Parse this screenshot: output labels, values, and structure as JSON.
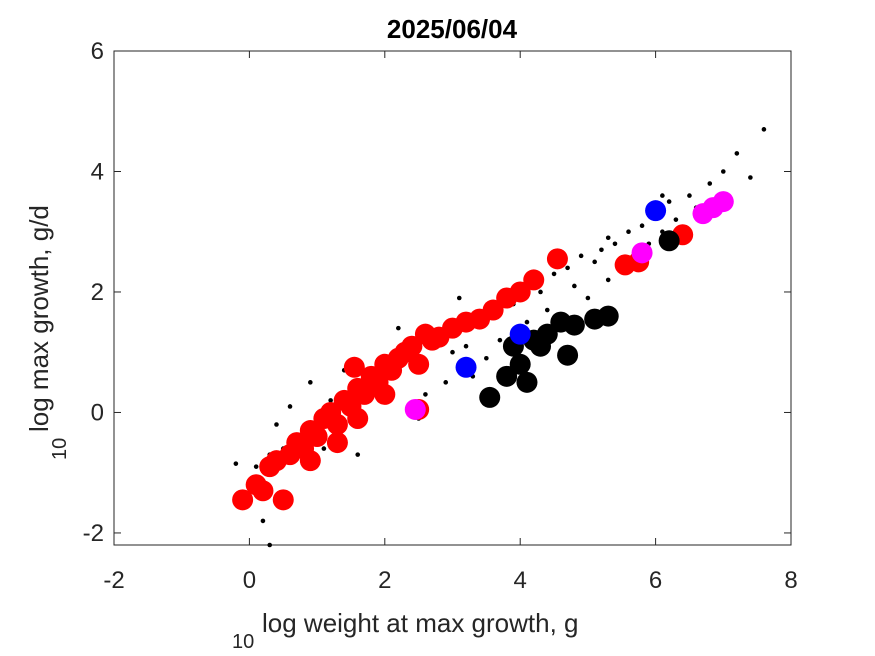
{
  "chart_data": {
    "type": "scatter",
    "title": "2025/06/04",
    "xlabel": "log weight at max growth, g",
    "xlabel_prefix": "10",
    "ylabel": "log max growth, g/d",
    "ylabel_prefix": "10",
    "xlim": [
      -2,
      8
    ],
    "ylim": [
      -2.2,
      6
    ],
    "xticks": [
      "-2",
      "0",
      "2",
      "4",
      "6",
      "8"
    ],
    "yticks": [
      "-2",
      "0",
      "2",
      "4",
      "6"
    ],
    "grid": false,
    "colors": {
      "background_dots": "#000000",
      "red": "#ff0000",
      "black": "#000000",
      "blue": "#0000ff",
      "magenta": "#ff00ff"
    },
    "series": [
      {
        "color": "black",
        "marker": "small-dot",
        "points": [
          [
            -0.2,
            -0.85
          ],
          [
            0.1,
            -0.9
          ],
          [
            0.3,
            -0.7
          ],
          [
            0.5,
            -0.6
          ],
          [
            0.8,
            -0.4
          ],
          [
            1.0,
            -0.3
          ],
          [
            0.6,
            0.1
          ],
          [
            1.2,
            0.2
          ],
          [
            1.5,
            0.4
          ],
          [
            1.8,
            0.5
          ],
          [
            2.1,
            0.8
          ],
          [
            2.4,
            1.0
          ],
          [
            2.8,
            1.3
          ],
          [
            3.0,
            1.0
          ],
          [
            3.2,
            1.1
          ],
          [
            3.4,
            1.5
          ],
          [
            3.5,
            0.9
          ],
          [
            3.6,
            1.6
          ],
          [
            3.7,
            1.2
          ],
          [
            3.9,
            1.8
          ],
          [
            4.1,
            1.5
          ],
          [
            4.3,
            2.0
          ],
          [
            4.4,
            1.7
          ],
          [
            4.5,
            2.3
          ],
          [
            4.6,
            1.6
          ],
          [
            4.7,
            2.4
          ],
          [
            4.8,
            2.1
          ],
          [
            4.9,
            2.6
          ],
          [
            5.0,
            1.9
          ],
          [
            5.1,
            2.5
          ],
          [
            5.2,
            2.7
          ],
          [
            5.3,
            2.2
          ],
          [
            5.4,
            2.8
          ],
          [
            5.5,
            2.4
          ],
          [
            5.6,
            3.0
          ],
          [
            5.7,
            2.6
          ],
          [
            5.8,
            3.1
          ],
          [
            5.9,
            2.8
          ],
          [
            6.0,
            3.3
          ],
          [
            6.1,
            3.0
          ],
          [
            6.2,
            3.5
          ],
          [
            6.3,
            3.2
          ],
          [
            6.5,
            3.6
          ],
          [
            6.6,
            3.4
          ],
          [
            6.8,
            3.8
          ],
          [
            7.0,
            4.0
          ],
          [
            7.2,
            4.3
          ],
          [
            7.4,
            3.9
          ],
          [
            7.6,
            4.7
          ],
          [
            2.6,
            0.3
          ],
          [
            2.9,
            0.5
          ],
          [
            3.3,
            0.6
          ],
          [
            3.8,
            0.7
          ],
          [
            4.2,
            1.1
          ],
          [
            1.1,
            -0.6
          ],
          [
            0.4,
            -0.2
          ],
          [
            0.9,
            0.5
          ],
          [
            1.4,
            0.7
          ],
          [
            2.2,
            1.4
          ],
          [
            3.1,
            1.9
          ],
          [
            0.2,
            -1.8
          ],
          [
            0.3,
            -2.2
          ],
          [
            1.6,
            -0.7
          ],
          [
            2.5,
            -0.1
          ],
          [
            5.3,
            2.9
          ],
          [
            6.1,
            3.6
          ]
        ]
      },
      {
        "color": "red",
        "marker": "large-dot",
        "points": [
          [
            -0.1,
            -1.45
          ],
          [
            0.1,
            -1.2
          ],
          [
            0.2,
            -1.3
          ],
          [
            0.3,
            -0.9
          ],
          [
            0.4,
            -0.8
          ],
          [
            0.5,
            -1.45
          ],
          [
            0.6,
            -0.7
          ],
          [
            0.7,
            -0.5
          ],
          [
            0.8,
            -0.6
          ],
          [
            0.9,
            -0.3
          ],
          [
            1.0,
            -0.4
          ],
          [
            1.1,
            -0.1
          ],
          [
            1.2,
            0.0
          ],
          [
            1.3,
            -0.2
          ],
          [
            1.4,
            0.2
          ],
          [
            1.5,
            0.1
          ],
          [
            1.55,
            0.75
          ],
          [
            1.6,
            0.4
          ],
          [
            1.7,
            0.3
          ],
          [
            1.8,
            0.6
          ],
          [
            1.9,
            0.5
          ],
          [
            2.0,
            0.8
          ],
          [
            2.1,
            0.7
          ],
          [
            2.2,
            0.9
          ],
          [
            2.3,
            1.0
          ],
          [
            2.4,
            1.1
          ],
          [
            2.5,
            0.8
          ],
          [
            2.6,
            1.3
          ],
          [
            2.7,
            1.2
          ],
          [
            2.8,
            1.25
          ],
          [
            3.0,
            1.4
          ],
          [
            3.2,
            1.5
          ],
          [
            3.4,
            1.55
          ],
          [
            3.6,
            1.7
          ],
          [
            3.8,
            1.9
          ],
          [
            4.0,
            2.0
          ],
          [
            4.2,
            2.2
          ],
          [
            4.55,
            2.55
          ],
          [
            1.3,
            -0.5
          ],
          [
            0.9,
            -0.8
          ],
          [
            1.6,
            -0.1
          ],
          [
            2.0,
            0.3
          ],
          [
            2.5,
            0.05
          ],
          [
            5.55,
            2.45
          ],
          [
            5.75,
            2.5
          ],
          [
            6.4,
            2.95
          ]
        ]
      },
      {
        "color": "black",
        "marker": "large-dot",
        "points": [
          [
            3.55,
            0.25
          ],
          [
            3.8,
            0.6
          ],
          [
            3.9,
            1.1
          ],
          [
            4.0,
            0.8
          ],
          [
            4.1,
            0.5
          ],
          [
            4.2,
            1.2
          ],
          [
            4.3,
            1.1
          ],
          [
            4.4,
            1.3
          ],
          [
            4.6,
            1.5
          ],
          [
            4.7,
            0.95
          ],
          [
            4.8,
            1.45
          ],
          [
            5.1,
            1.55
          ],
          [
            5.3,
            1.6
          ],
          [
            6.2,
            2.85
          ]
        ]
      },
      {
        "color": "blue",
        "marker": "large-dot",
        "points": [
          [
            3.2,
            0.75
          ],
          [
            4.0,
            1.3
          ],
          [
            6.0,
            3.35
          ]
        ]
      },
      {
        "color": "magenta",
        "marker": "large-dot",
        "points": [
          [
            2.45,
            0.05
          ],
          [
            5.8,
            2.65
          ],
          [
            6.7,
            3.3
          ],
          [
            6.85,
            3.4
          ],
          [
            7.0,
            3.5
          ]
        ]
      }
    ]
  }
}
